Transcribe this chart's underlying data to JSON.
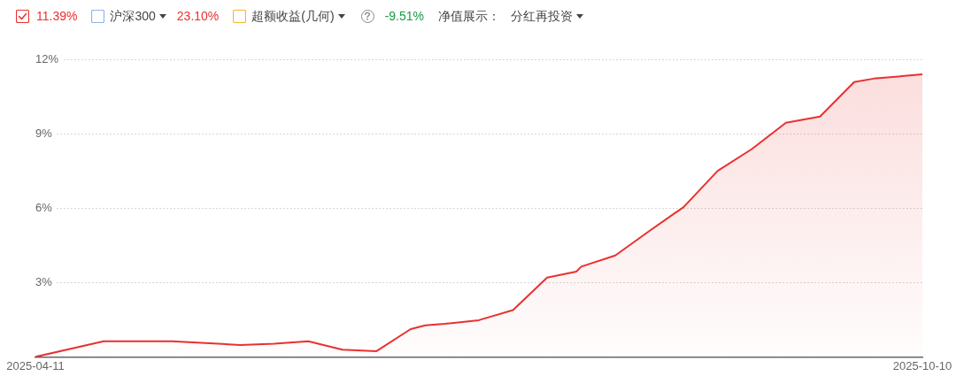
{
  "chart_data": {
    "type": "area",
    "annotations": [
      "11.39%",
      "沪深300",
      "23.10%",
      "超额收益(几何)",
      "-9.51%",
      "净值展示：",
      "分红再投资"
    ],
    "x": [
      "2025-04-11",
      "2025-04-25",
      "2025-04-30",
      "2025-05-09",
      "2025-05-23",
      "2025-05-30",
      "2025-06-06",
      "2025-06-13",
      "2025-06-20",
      "2025-06-27",
      "2025-06-30",
      "2025-07-04",
      "2025-07-11",
      "2025-07-18",
      "2025-07-25",
      "2025-07-31",
      "2025-08-01",
      "2025-08-08",
      "2025-08-15",
      "2025-08-22",
      "2025-08-29",
      "2025-09-05",
      "2025-09-12",
      "2025-09-19",
      "2025-09-26",
      "2025-09-30",
      "2025-10-10"
    ],
    "series": [
      {
        "color": "#e8312f",
        "values": [
          0,
          0.63,
          0.63,
          0.63,
          0.48,
          0.53,
          0.63,
          0.29,
          0.23,
          1.12,
          1.27,
          1.33,
          1.48,
          1.89,
          3.2,
          3.44,
          3.64,
          4.09,
          5.08,
          6.04,
          7.5,
          8.38,
          9.44,
          9.69,
          11.08,
          11.22,
          11.39
        ]
      }
    ],
    "xlim": [
      "2025-04-11",
      "2025-10-10"
    ],
    "xticks": [
      "2025-04-11",
      "2025-10-10"
    ],
    "ylim": [
      0,
      12
    ],
    "yticks": [
      {
        "value": 0,
        "label": null
      },
      {
        "value": 3,
        "label": "3%"
      },
      {
        "value": 6,
        "label": "6%"
      },
      {
        "value": 9,
        "label": "9%"
      },
      {
        "value": 12,
        "label": "12%"
      }
    ],
    "grid": "y",
    "legend": false
  }
}
